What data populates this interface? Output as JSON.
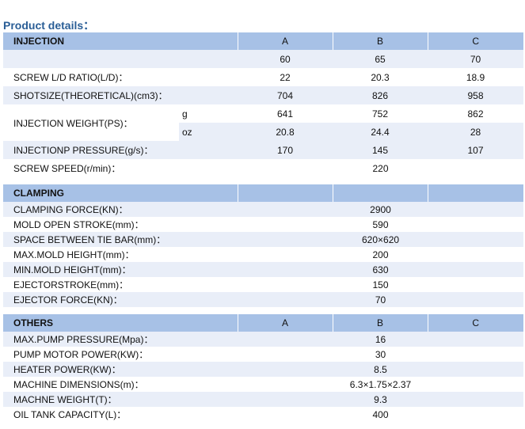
{
  "title": "Product details：",
  "injection": {
    "header": "INJECTION",
    "columns": [
      "A",
      "B",
      "C"
    ],
    "rows": [
      {
        "label": "",
        "values": [
          "60",
          "65",
          "70"
        ]
      },
      {
        "label": "SCREW L/D RATIO(L/D)：",
        "values": [
          "22",
          "20.3",
          "18.9"
        ]
      },
      {
        "label": "SHOTSIZE(THEORETICAL)(cm3)：",
        "values": [
          "704",
          "826",
          "958"
        ]
      }
    ],
    "weight": {
      "label": "INJECTION WEIGHT(PS)：",
      "g_unit": "g",
      "g_values": [
        "641",
        "752",
        "862"
      ],
      "oz_unit": "oz",
      "oz_values": [
        "20.8",
        "24.4",
        "28"
      ]
    },
    "pressure": {
      "label": "INJECTIONP PRESSURE(g/s)：",
      "values": [
        "170",
        "145",
        "107"
      ]
    },
    "speed": {
      "label": "SCREW SPEED(r/min)：",
      "value": "220"
    }
  },
  "clamping": {
    "header": "CLAMPING",
    "rows": [
      {
        "label": "CLAMPING FORCE(KN)：",
        "value": "2900"
      },
      {
        "label": "MOLD OPEN STROKE(mm)：",
        "value": "590"
      },
      {
        "label": "SPACE BETWEEN TIE BAR(mm)：",
        "value": "620×620"
      },
      {
        "label": "MAX.MOLD HEIGHT(mm)：",
        "value": "200"
      },
      {
        "label": "MIN.MOLD HEIGHT(mm)：",
        "value": "630"
      },
      {
        "label": "EJECTORSTROKE(mm)：",
        "value": "150"
      },
      {
        "label": "EJECTOR FORCE(KN)：",
        "value": "70"
      }
    ]
  },
  "others": {
    "header": "OTHERS",
    "columns": [
      "A",
      "B",
      "C"
    ],
    "rows": [
      {
        "label": "MAX.PUMP PRESSURE(Mpa)：",
        "value": "16"
      },
      {
        "label": "PUMP MOTOR POWER(KW)：",
        "value": "30"
      },
      {
        "label": "HEATER POWER(KW)：",
        "value": "8.5"
      },
      {
        "label": "MACHINE DIMENSIONS(m)：",
        "value": "6.3×1.75×2.37"
      },
      {
        "label": "MACHNE WEIGHT(T)：",
        "value": "9.3"
      },
      {
        "label": "OIL TANK CAPACITY(L)：",
        "value": "400"
      }
    ]
  },
  "colors": {
    "header": "#a7c1e6",
    "row_shade": "#e9eef8",
    "title": "#2a5e96"
  }
}
